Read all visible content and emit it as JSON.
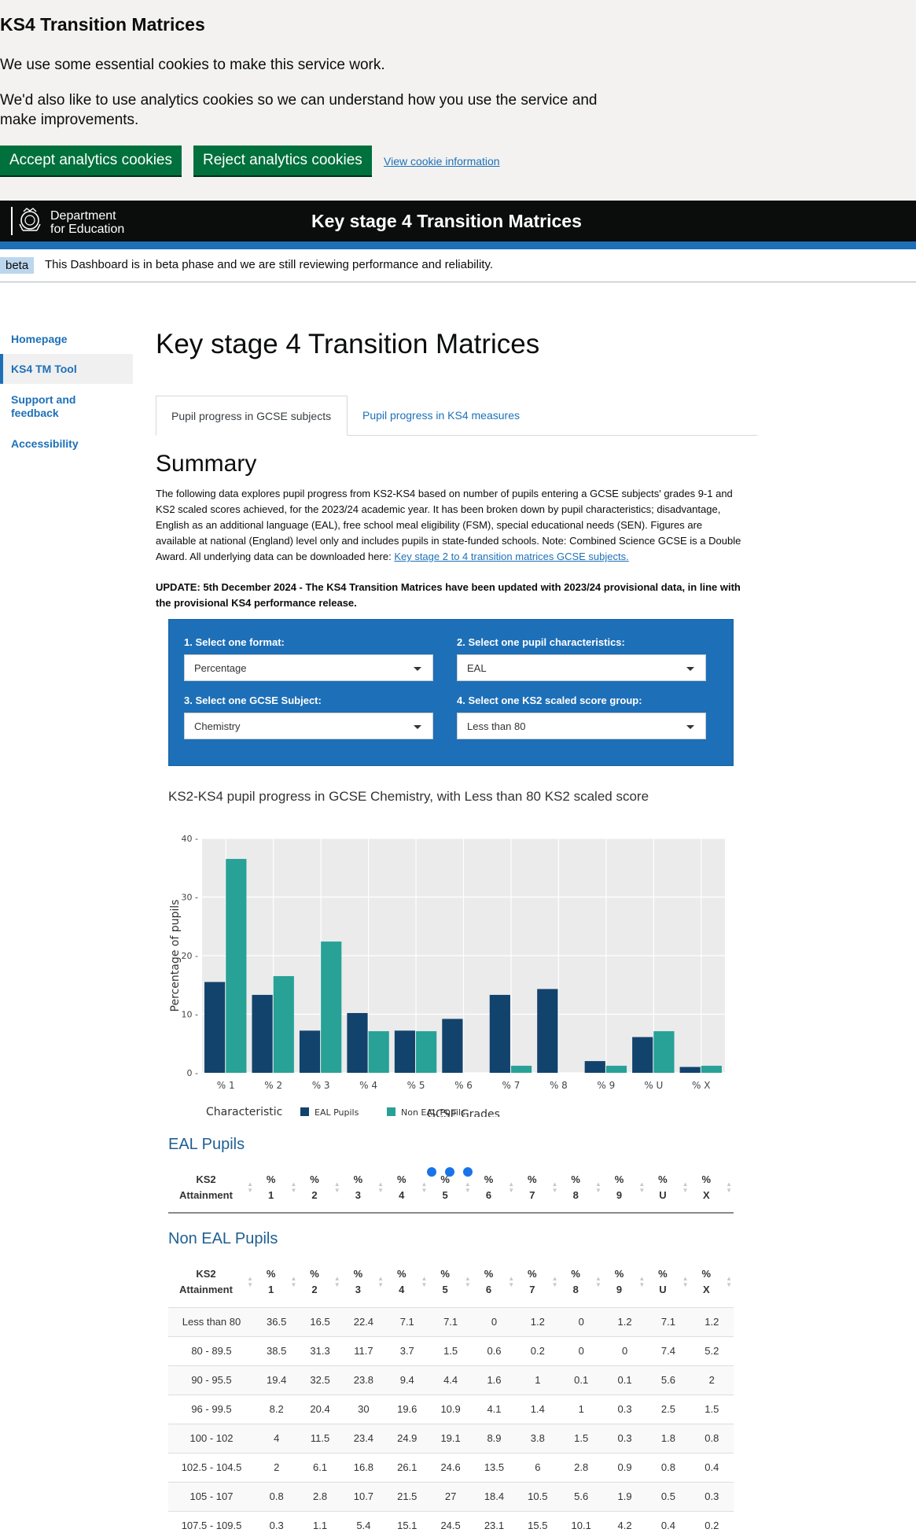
{
  "cookie_banner": {
    "title": "KS4 Transition Matrices",
    "text1": "We use some essential cookies to make this service work.",
    "text2": "We'd also like to use analytics cookies so we can understand how you use the service and make improvements.",
    "accept_label": "Accept analytics cookies",
    "reject_label": "Reject analytics cookies",
    "info_link": "View cookie information"
  },
  "header": {
    "logo_line1": "Department",
    "logo_line2": "for Education",
    "title": "Key stage 4 Transition Matrices"
  },
  "beta": {
    "tag": "beta",
    "text": "This Dashboard is in beta phase and we are still reviewing performance and reliability."
  },
  "nav": {
    "items": [
      {
        "label": "Homepage"
      },
      {
        "label": "KS4 TM Tool"
      },
      {
        "label": "Support and feedback"
      },
      {
        "label": "Accessibility"
      }
    ]
  },
  "main": {
    "title": "Key stage 4 Transition Matrices",
    "tabs": [
      {
        "label": "Pupil progress in GCSE subjects"
      },
      {
        "label": "Pupil progress in KS4 measures"
      }
    ],
    "summary_heading": "Summary",
    "summary_text": "The following data explores pupil progress from KS2-KS4 based on number of pupils entering a GCSE subjects' grades 9-1 and KS2 scaled scores achieved, for the 2023/24 academic year. It has been broken down by pupil characteristics; disadvantage, English as an additional language (EAL), free school meal eligibility (FSM), special educational needs (SEN). Figures are available at national (England) level only and includes pupils in state-funded schools. Note: Combined Science GCSE is a Double Award. All underlying data can be downloaded here: ",
    "summary_link": "Key stage 2 to 4 transition matrices GCSE subjects.",
    "update_text": "UPDATE: 5th December 2024 - The KS4 Transition Matrices have been updated with 2023/24 provisional data, in line with the provisional KS4 performance release."
  },
  "selectors": {
    "format_label": "1. Select one format:",
    "format_value": "Percentage",
    "characteristic_label": "2. Select one pupil characteristics:",
    "characteristic_value": "EAL",
    "subject_label": "3. Select one GCSE Subject:",
    "subject_value": "Chemistry",
    "ks2_label": "4. Select one KS2 scaled score group:",
    "ks2_value": "Less than 80"
  },
  "chart_title": "KS2-KS4 pupil progress in GCSE Chemistry, with Less than 80 KS2 scaled score",
  "chart_data": {
    "type": "bar",
    "categories": [
      "% 1",
      "% 2",
      "% 3",
      "% 4",
      "% 5",
      "% 6",
      "% 7",
      "% 8",
      "% 9",
      "% U",
      "% X"
    ],
    "series": [
      {
        "name": "EAL Pupils",
        "color": "#12436d",
        "values": [
          15.5,
          13.3,
          7.2,
          10.2,
          7.2,
          9.2,
          13.3,
          14.3,
          2.0,
          6.1,
          1.0
        ]
      },
      {
        "name": "Non EAL Pupils",
        "color": "#28a197",
        "values": [
          36.5,
          16.5,
          22.4,
          7.1,
          7.1,
          0,
          1.2,
          0,
          1.2,
          7.1,
          1.2
        ]
      }
    ],
    "xlabel": "GCSE Grades",
    "ylabel": "Percentage of pupils",
    "ylim": [
      0,
      40
    ],
    "yticks": [
      0,
      10,
      20,
      30,
      40
    ],
    "legend_title": "Characteristic",
    "legend_position": "bottom",
    "grid": true
  },
  "eal_section": {
    "heading": "EAL Pupils",
    "columns": [
      "KS2 Attainment",
      "% 1",
      "% 2",
      "% 3",
      "% 4",
      "% 5",
      "% 6",
      "% 7",
      "% 8",
      "% 9",
      "% U",
      "% X"
    ]
  },
  "non_eal_section": {
    "heading": "Non EAL Pupils",
    "columns": [
      "KS2 Attainment",
      "% 1",
      "% 2",
      "% 3",
      "% 4",
      "% 5",
      "% 6",
      "% 7",
      "% 8",
      "% 9",
      "% U",
      "% X"
    ],
    "rows": [
      [
        "Less than 80",
        "36.5",
        "16.5",
        "22.4",
        "7.1",
        "7.1",
        "0",
        "1.2",
        "0",
        "1.2",
        "7.1",
        "1.2"
      ],
      [
        "80 - 89.5",
        "38.5",
        "31.3",
        "11.7",
        "3.7",
        "1.5",
        "0.6",
        "0.2",
        "0",
        "0",
        "7.4",
        "5.2"
      ],
      [
        "90 - 95.5",
        "19.4",
        "32.5",
        "23.8",
        "9.4",
        "4.4",
        "1.6",
        "1",
        "0.1",
        "0.1",
        "5.6",
        "2"
      ],
      [
        "96 - 99.5",
        "8.2",
        "20.4",
        "30",
        "19.6",
        "10.9",
        "4.1",
        "1.4",
        "1",
        "0.3",
        "2.5",
        "1.5"
      ],
      [
        "100 - 102",
        "4",
        "11.5",
        "23.4",
        "24.9",
        "19.1",
        "8.9",
        "3.8",
        "1.5",
        "0.3",
        "1.8",
        "0.8"
      ],
      [
        "102.5 - 104.5",
        "2",
        "6.1",
        "16.8",
        "26.1",
        "24.6",
        "13.5",
        "6",
        "2.8",
        "0.9",
        "0.8",
        "0.4"
      ],
      [
        "105 - 107",
        "0.8",
        "2.8",
        "10.7",
        "21.5",
        "27",
        "18.4",
        "10.5",
        "5.6",
        "1.9",
        "0.5",
        "0.3"
      ],
      [
        "107.5 - 109.5",
        "0.3",
        "1.1",
        "5.4",
        "15.1",
        "24.5",
        "23.1",
        "15.5",
        "10.1",
        "4.2",
        "0.4",
        "0.2"
      ]
    ]
  }
}
